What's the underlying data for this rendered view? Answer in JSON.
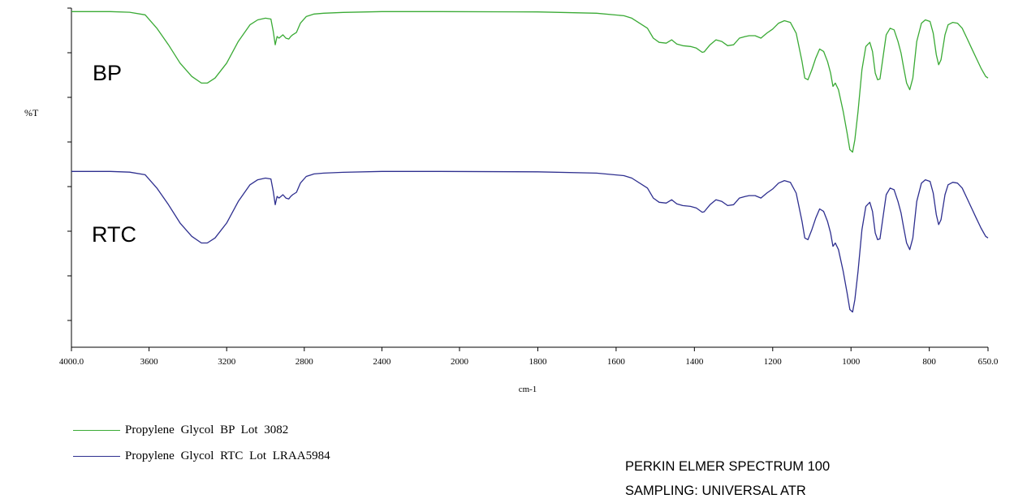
{
  "chart_data": {
    "type": "line",
    "xlabel": "cm-1",
    "ylabel": "%T",
    "xlim": [
      4000.0,
      650.0
    ],
    "x_reversed": true,
    "x_ticks": [
      "4000.0",
      "3600",
      "3200",
      "2800",
      "2400",
      "2000",
      "1800",
      "1600",
      "1400",
      "1200",
      "1000",
      "800",
      "650.0"
    ],
    "y_tick_labels": false,
    "annotations": [
      "BP",
      "RTC"
    ],
    "series": [
      {
        "name": "Propylene Glycol BP Lot 3082",
        "color": "#3aaa35",
        "offset": 0,
        "points": [
          [
            4000,
            95
          ],
          [
            3800,
            95
          ],
          [
            3700,
            94.6
          ],
          [
            3620,
            93
          ],
          [
            3560,
            85
          ],
          [
            3500,
            75
          ],
          [
            3440,
            64
          ],
          [
            3380,
            56
          ],
          [
            3330,
            52
          ],
          [
            3300,
            52
          ],
          [
            3260,
            55
          ],
          [
            3200,
            64
          ],
          [
            3140,
            77
          ],
          [
            3080,
            87
          ],
          [
            3040,
            90
          ],
          [
            3000,
            91
          ],
          [
            2972,
            90.5
          ],
          [
            2960,
            83
          ],
          [
            2950,
            75
          ],
          [
            2940,
            80
          ],
          [
            2930,
            79
          ],
          [
            2910,
            81
          ],
          [
            2895,
            79
          ],
          [
            2880,
            78.5
          ],
          [
            2870,
            80
          ],
          [
            2860,
            81
          ],
          [
            2840,
            82.5
          ],
          [
            2820,
            88
          ],
          [
            2790,
            92
          ],
          [
            2750,
            93.5
          ],
          [
            2700,
            94
          ],
          [
            2600,
            94.5
          ],
          [
            2400,
            95
          ],
          [
            2100,
            95
          ],
          [
            1800,
            94.8
          ],
          [
            1650,
            94
          ],
          [
            1580,
            92.5
          ],
          [
            1560,
            91
          ],
          [
            1520,
            85
          ],
          [
            1505,
            79
          ],
          [
            1490,
            76.5
          ],
          [
            1472,
            76
          ],
          [
            1458,
            78
          ],
          [
            1445,
            75.5
          ],
          [
            1430,
            74.5
          ],
          [
            1410,
            74
          ],
          [
            1395,
            73
          ],
          [
            1380,
            70.5
          ],
          [
            1375,
            70.8
          ],
          [
            1360,
            75
          ],
          [
            1345,
            78
          ],
          [
            1330,
            77
          ],
          [
            1315,
            74.5
          ],
          [
            1300,
            75
          ],
          [
            1285,
            79
          ],
          [
            1270,
            80
          ],
          [
            1260,
            80.5
          ],
          [
            1245,
            80.5
          ],
          [
            1230,
            79
          ],
          [
            1215,
            82
          ],
          [
            1200,
            84.5
          ],
          [
            1185,
            88
          ],
          [
            1170,
            89.5
          ],
          [
            1155,
            88.5
          ],
          [
            1140,
            82
          ],
          [
            1125,
            65
          ],
          [
            1118,
            55
          ],
          [
            1110,
            54
          ],
          [
            1100,
            60
          ],
          [
            1090,
            67
          ],
          [
            1080,
            72.5
          ],
          [
            1070,
            71
          ],
          [
            1060,
            65
          ],
          [
            1052,
            58
          ],
          [
            1046,
            50
          ],
          [
            1040,
            52
          ],
          [
            1032,
            48
          ],
          [
            1020,
            35
          ],
          [
            1010,
            22
          ],
          [
            1003,
            12
          ],
          [
            996,
            10.5
          ],
          [
            990,
            18
          ],
          [
            982,
            35
          ],
          [
            972,
            60
          ],
          [
            962,
            74
          ],
          [
            952,
            76.5
          ],
          [
            945,
            71
          ],
          [
            938,
            58
          ],
          [
            932,
            54
          ],
          [
            926,
            54.5
          ],
          [
            918,
            68
          ],
          [
            910,
            81
          ],
          [
            900,
            85
          ],
          [
            890,
            84
          ],
          [
            880,
            77
          ],
          [
            872,
            70
          ],
          [
            866,
            62
          ],
          [
            858,
            52
          ],
          [
            850,
            48
          ],
          [
            842,
            55
          ],
          [
            832,
            77
          ],
          [
            820,
            88
          ],
          [
            810,
            90
          ],
          [
            798,
            89
          ],
          [
            790,
            82
          ],
          [
            782,
            69
          ],
          [
            776,
            63
          ],
          [
            770,
            66
          ],
          [
            760,
            81
          ],
          [
            752,
            87
          ],
          [
            740,
            88.5
          ],
          [
            728,
            88
          ],
          [
            716,
            85
          ],
          [
            704,
            79
          ],
          [
            692,
            73
          ],
          [
            680,
            67
          ],
          [
            668,
            61
          ],
          [
            656,
            56
          ],
          [
            650,
            55
          ]
        ]
      },
      {
        "name": "Propylene Glycol RTC Lot LRAA5984",
        "color": "#2e2f8f",
        "offset": -54,
        "points": [
          [
            4000,
            95
          ],
          [
            3800,
            95
          ],
          [
            3700,
            94.6
          ],
          [
            3620,
            93
          ],
          [
            3560,
            85
          ],
          [
            3500,
            75
          ],
          [
            3440,
            64
          ],
          [
            3380,
            56
          ],
          [
            3330,
            52
          ],
          [
            3300,
            52
          ],
          [
            3260,
            55
          ],
          [
            3200,
            64
          ],
          [
            3140,
            77
          ],
          [
            3080,
            87
          ],
          [
            3040,
            90
          ],
          [
            3000,
            91
          ],
          [
            2972,
            90.5
          ],
          [
            2960,
            83
          ],
          [
            2950,
            75
          ],
          [
            2940,
            80
          ],
          [
            2930,
            79
          ],
          [
            2910,
            81
          ],
          [
            2895,
            79
          ],
          [
            2880,
            78.5
          ],
          [
            2870,
            80
          ],
          [
            2860,
            81
          ],
          [
            2840,
            82.5
          ],
          [
            2820,
            88
          ],
          [
            2790,
            92
          ],
          [
            2750,
            93.5
          ],
          [
            2700,
            94
          ],
          [
            2600,
            94.5
          ],
          [
            2400,
            95
          ],
          [
            2100,
            95
          ],
          [
            1800,
            94.8
          ],
          [
            1650,
            94
          ],
          [
            1580,
            92.5
          ],
          [
            1560,
            91
          ],
          [
            1520,
            85
          ],
          [
            1505,
            79
          ],
          [
            1490,
            76.5
          ],
          [
            1472,
            76
          ],
          [
            1458,
            78
          ],
          [
            1445,
            75.5
          ],
          [
            1430,
            74.5
          ],
          [
            1410,
            74
          ],
          [
            1395,
            73
          ],
          [
            1380,
            70.5
          ],
          [
            1375,
            70.8
          ],
          [
            1360,
            75
          ],
          [
            1345,
            78
          ],
          [
            1330,
            77
          ],
          [
            1315,
            74.5
          ],
          [
            1300,
            75
          ],
          [
            1285,
            79
          ],
          [
            1270,
            80
          ],
          [
            1260,
            80.5
          ],
          [
            1245,
            80.5
          ],
          [
            1230,
            79
          ],
          [
            1215,
            82
          ],
          [
            1200,
            84.5
          ],
          [
            1185,
            88
          ],
          [
            1170,
            89.5
          ],
          [
            1155,
            88.5
          ],
          [
            1140,
            82
          ],
          [
            1125,
            65
          ],
          [
            1118,
            55
          ],
          [
            1110,
            54
          ],
          [
            1100,
            60
          ],
          [
            1090,
            67
          ],
          [
            1080,
            72.5
          ],
          [
            1070,
            71
          ],
          [
            1060,
            65
          ],
          [
            1052,
            58
          ],
          [
            1046,
            50
          ],
          [
            1040,
            52
          ],
          [
            1032,
            48
          ],
          [
            1020,
            35
          ],
          [
            1010,
            22
          ],
          [
            1003,
            12
          ],
          [
            996,
            10.5
          ],
          [
            990,
            18
          ],
          [
            982,
            35
          ],
          [
            972,
            60
          ],
          [
            962,
            74
          ],
          [
            952,
            76.5
          ],
          [
            945,
            71
          ],
          [
            938,
            58
          ],
          [
            932,
            54
          ],
          [
            926,
            54.5
          ],
          [
            918,
            68
          ],
          [
            910,
            81
          ],
          [
            900,
            85
          ],
          [
            890,
            84
          ],
          [
            880,
            77
          ],
          [
            872,
            70
          ],
          [
            866,
            62
          ],
          [
            858,
            52
          ],
          [
            850,
            48
          ],
          [
            842,
            55
          ],
          [
            832,
            77
          ],
          [
            820,
            88
          ],
          [
            810,
            90
          ],
          [
            798,
            89
          ],
          [
            790,
            82
          ],
          [
            782,
            69
          ],
          [
            776,
            63
          ],
          [
            770,
            66
          ],
          [
            760,
            81
          ],
          [
            752,
            87
          ],
          [
            740,
            88.5
          ],
          [
            728,
            88
          ],
          [
            716,
            85
          ],
          [
            704,
            79
          ],
          [
            692,
            73
          ],
          [
            680,
            67
          ],
          [
            668,
            61
          ],
          [
            656,
            56
          ],
          [
            650,
            55
          ]
        ]
      }
    ]
  },
  "instrument_info": [
    "PERKIN ELMER SPECTRUM 100",
    "SAMPLING: UNIVERSAL ATR"
  ]
}
